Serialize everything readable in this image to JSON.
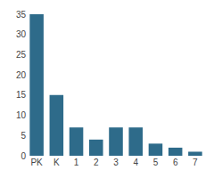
{
  "chart_data": {
    "type": "bar",
    "categories": [
      "PK",
      "K",
      "1",
      "2",
      "3",
      "4",
      "5",
      "6",
      "7"
    ],
    "values": [
      35,
      15,
      7,
      4,
      7,
      7,
      3,
      2,
      1
    ],
    "color": "#2e6b8a",
    "ylim": [
      0,
      35
    ],
    "yticks": [
      0,
      5,
      10,
      15,
      20,
      25,
      30,
      35
    ],
    "grid": false
  }
}
